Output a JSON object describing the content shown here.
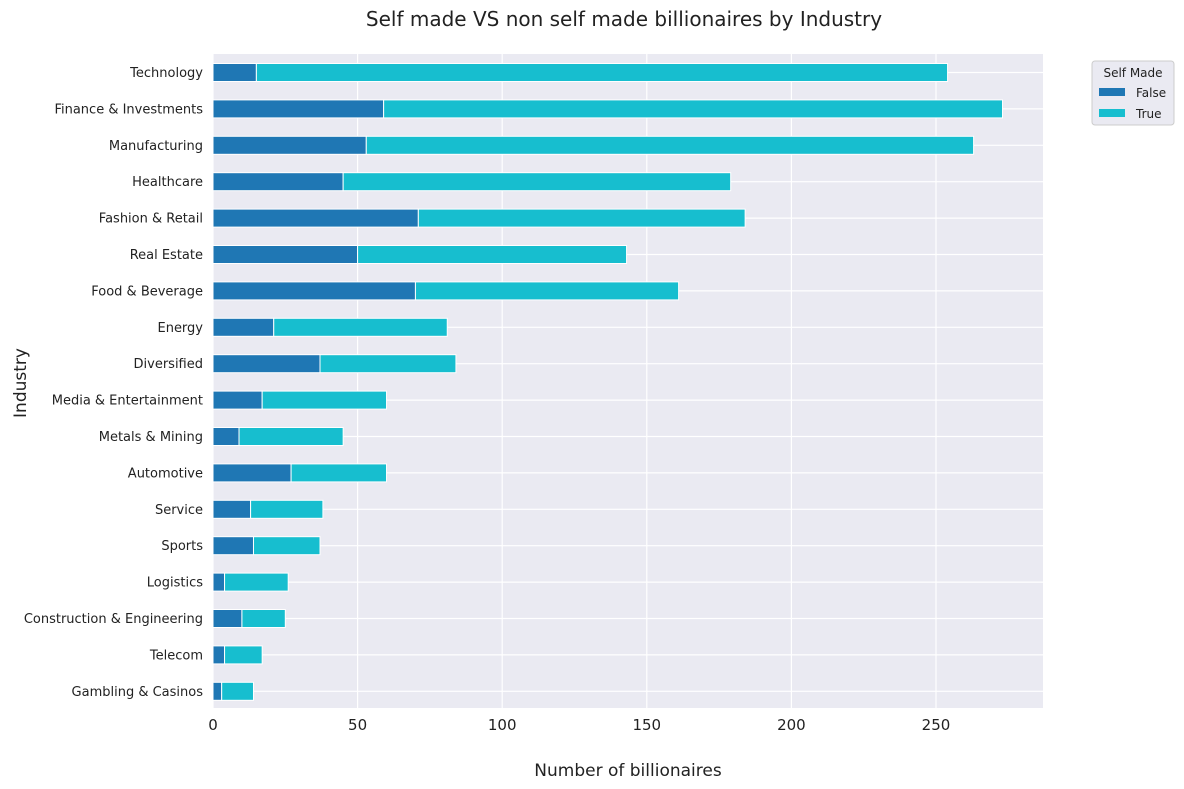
{
  "chart_data": {
    "type": "bar",
    "orientation": "horizontal",
    "stacked": true,
    "title": "Self made VS non self made billionaires by Industry",
    "xlabel": "Number of billionaires",
    "ylabel": "Industry",
    "xlim": [
      0,
      287
    ],
    "xticks": [
      0,
      50,
      100,
      150,
      200,
      250
    ],
    "grid": true,
    "legend": {
      "title": "Self Made",
      "placement": "upper right, outside plot"
    },
    "categories": [
      "Technology",
      "Finance & Investments",
      "Manufacturing",
      "Healthcare",
      "Fashion & Retail",
      "Real Estate",
      "Food & Beverage",
      "Energy",
      "Diversified",
      "Media & Entertainment",
      "Metals & Mining",
      "Automotive",
      "Service",
      "Sports",
      "Logistics",
      "Construction & Engineering",
      "Telecom",
      "Gambling & Casinos"
    ],
    "series": [
      {
        "name": "False",
        "color": "#1f77b4",
        "values": [
          15,
          59,
          53,
          45,
          71,
          50,
          70,
          21,
          37,
          17,
          9,
          27,
          13,
          14,
          4,
          10,
          4,
          3
        ]
      },
      {
        "name": "True",
        "color": "#17becf",
        "values": [
          239,
          214,
          210,
          134,
          113,
          93,
          91,
          60,
          47,
          43,
          36,
          33,
          25,
          23,
          22,
          15,
          13,
          11
        ]
      }
    ]
  }
}
